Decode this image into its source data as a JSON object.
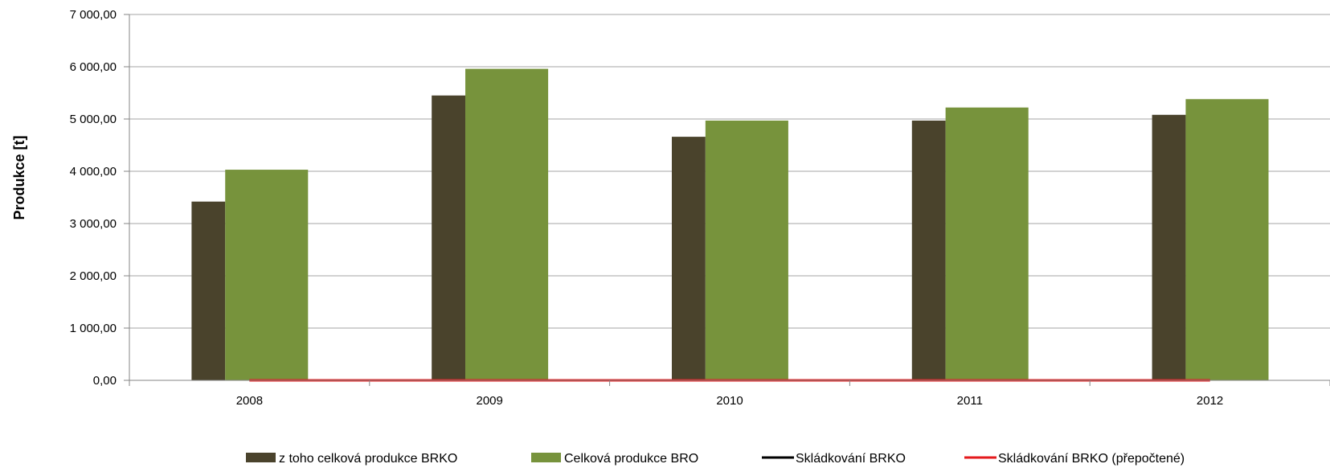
{
  "chart_data": {
    "type": "bar",
    "categories": [
      "2008",
      "2009",
      "2010",
      "2011",
      "2012"
    ],
    "series": [
      {
        "name": "z toho celková produkce BRKO",
        "kind": "bar",
        "color": "#4a432c",
        "values": [
          3420,
          5450,
          4660,
          4970,
          5080
        ]
      },
      {
        "name": "Celková produkce BRO",
        "kind": "bar",
        "color": "#77933c",
        "values": [
          4030,
          5960,
          4970,
          5220,
          5380
        ]
      },
      {
        "name": "Skládkování BRKO",
        "kind": "line",
        "color": "#000000",
        "values": [
          0,
          0,
          0,
          0,
          0
        ]
      },
      {
        "name": "Skládkování BRKO (přepočtené)",
        "kind": "line",
        "color": "#e41a1c",
        "values": [
          0,
          0,
          0,
          0,
          0
        ]
      }
    ],
    "ylabel": "Produkce [t]",
    "ylim": [
      0,
      7000
    ],
    "yticks": [
      0,
      1000,
      2000,
      3000,
      4000,
      5000,
      6000,
      7000
    ],
    "ytick_labels": [
      "0,00",
      "1 000,00",
      "2 000,00",
      "3 000,00",
      "4 000,00",
      "5 000,00",
      "6 000,00",
      "7 000,00"
    ],
    "grid": true,
    "legend_position": "bottom"
  }
}
